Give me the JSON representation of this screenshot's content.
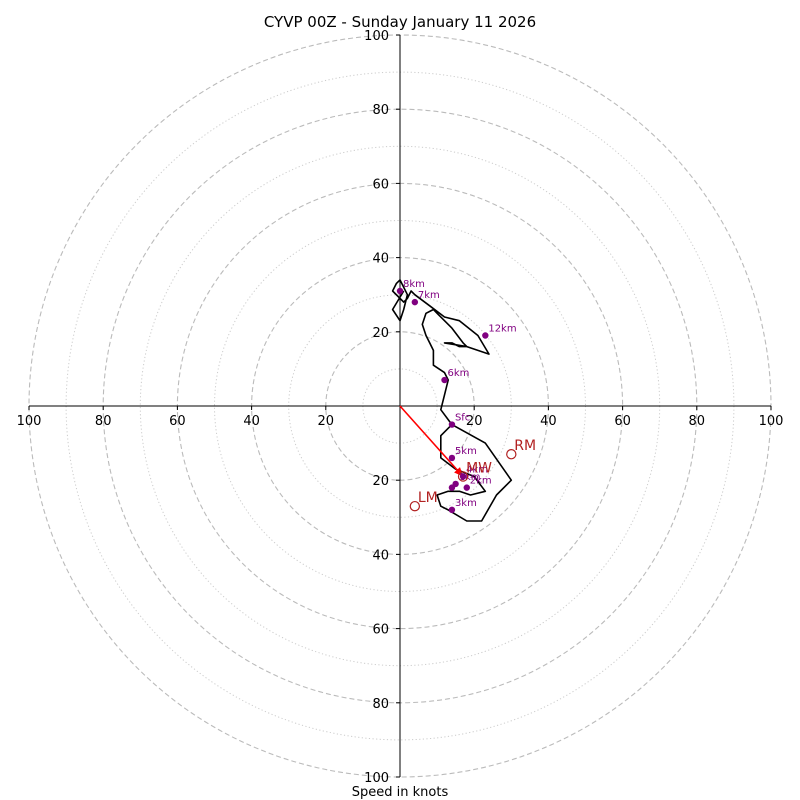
{
  "chart_data": {
    "type": "hodograph",
    "title": "CYVP 00Z - Sunday January 11 2026",
    "xlabel": "Speed in knots",
    "ylabel": "",
    "xlim": [
      -100,
      100
    ],
    "ylim": [
      -100,
      100
    ],
    "x_tick_labels": [
      "100",
      "80",
      "60",
      "40",
      "20",
      "20",
      "40",
      "60",
      "80",
      "100"
    ],
    "y_tick_labels": [
      "100",
      "80",
      "60",
      "40",
      "20",
      "20",
      "40",
      "60",
      "80",
      "100"
    ],
    "rings_dashed": [
      20,
      40,
      60,
      80,
      100
    ],
    "rings_dotted": [
      10,
      30,
      50,
      70,
      90
    ],
    "hodograph_line": {
      "color": "#000000",
      "points": [
        [
          14,
          -5
        ],
        [
          11,
          -8
        ],
        [
          11,
          -14
        ],
        [
          15,
          -17
        ],
        [
          20,
          -19
        ],
        [
          23,
          -23
        ],
        [
          19,
          -24
        ],
        [
          16,
          -23
        ],
        [
          13,
          -23
        ],
        [
          10,
          -24
        ],
        [
          11,
          -27
        ],
        [
          13,
          -28
        ],
        [
          18,
          -31
        ],
        [
          22,
          -31
        ],
        [
          26,
          -24
        ],
        [
          30,
          -20
        ],
        [
          23,
          -10
        ],
        [
          14,
          -5
        ],
        [
          11,
          -1
        ],
        [
          12,
          3
        ],
        [
          13,
          7
        ],
        [
          12,
          9
        ],
        [
          9,
          11
        ],
        [
          9,
          13
        ],
        [
          9,
          15
        ],
        [
          8,
          17
        ],
        [
          7,
          19
        ],
        [
          6,
          22
        ],
        [
          7,
          25
        ],
        [
          9,
          26
        ],
        [
          10,
          25
        ],
        [
          12,
          23
        ],
        [
          14,
          21
        ],
        [
          17,
          17
        ],
        [
          18,
          16
        ],
        [
          16,
          16
        ],
        [
          14,
          17
        ],
        [
          12,
          17
        ],
        [
          18,
          16
        ],
        [
          24,
          14
        ],
        [
          21,
          19
        ],
        [
          16,
          23
        ],
        [
          12,
          24
        ],
        [
          8,
          27
        ],
        [
          4,
          30
        ],
        [
          3,
          31
        ],
        [
          2,
          29
        ],
        [
          1,
          28
        ],
        [
          -2,
          31
        ],
        [
          -1,
          33
        ],
        [
          0,
          34
        ],
        [
          2,
          30
        ],
        [
          1,
          26
        ],
        [
          0,
          23
        ],
        [
          -2,
          26
        ],
        [
          1,
          31
        ]
      ]
    },
    "height_points": [
      {
        "label": "Sfc",
        "x": 14,
        "y": -5
      },
      {
        "label": "5km",
        "x": 14,
        "y": -14
      },
      {
        "label": "4km",
        "x": 17,
        "y": -19
      },
      {
        "label": "1km",
        "x": 15,
        "y": -21
      },
      {
        "label": "2km",
        "x": 18,
        "y": -22
      },
      {
        "label": "3km",
        "x": 14,
        "y": -28
      },
      {
        "label": "6km",
        "x": 12,
        "y": 7
      },
      {
        "label": "7km",
        "x": 4,
        "y": 28
      },
      {
        "label": "8km",
        "x": 0,
        "y": 31
      },
      {
        "label": "12km",
        "x": 23,
        "y": 19
      }
    ],
    "unlabeled_points": [
      {
        "x": 14,
        "y": -22
      }
    ],
    "storm_motions": [
      {
        "label": "RM",
        "x": 30,
        "y": -13
      },
      {
        "label": "MW",
        "x": 17,
        "y": -19
      },
      {
        "label": "LM",
        "x": 4,
        "y": -27
      }
    ],
    "mean_wind_vector": {
      "from": [
        0,
        0
      ],
      "to": [
        17,
        -19
      ],
      "color": "#ff0000"
    },
    "colors": {
      "grid": "#bbbbbb",
      "axis": "#000000",
      "points": "#800080",
      "storm_motion": "#b22222",
      "vector": "#ff0000"
    }
  }
}
